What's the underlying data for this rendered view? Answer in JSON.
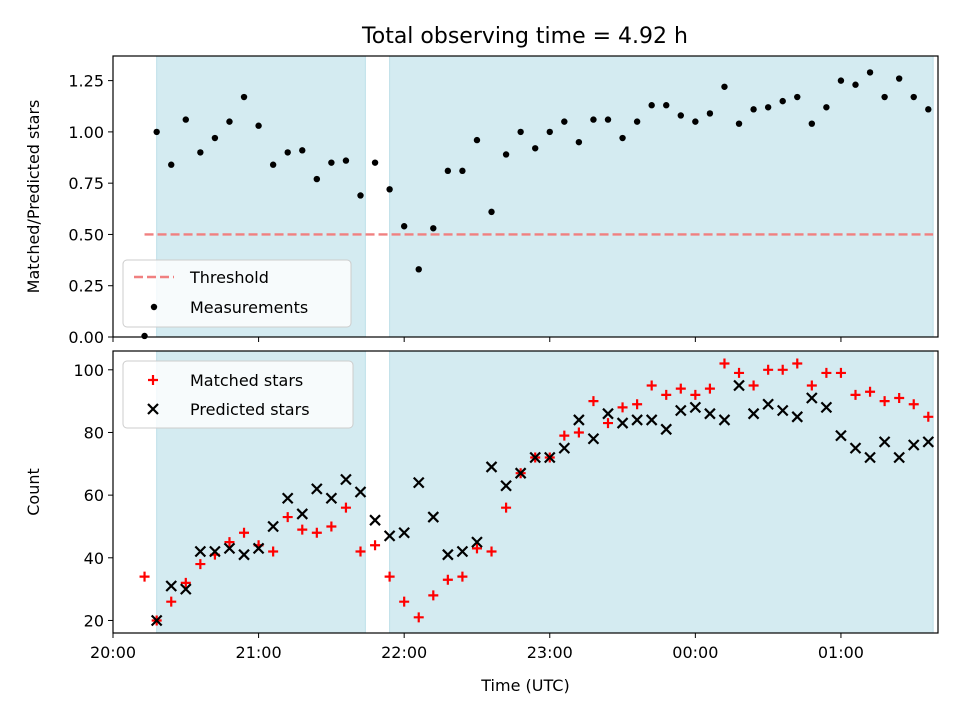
{
  "title": "Total observing time = 4.92 h",
  "colors": {
    "shade": "#d4ebf1",
    "threshold": "#f08080",
    "measurement": "#000000",
    "matched": "#ff0000",
    "predicted": "#000000"
  },
  "chart_data": [
    {
      "type": "scatter",
      "title": "Total observing time = 4.92 h",
      "ylabel": "Matched/Predicted stars",
      "xlabel": "",
      "xlim": [
        "20:00",
        "01:40"
      ],
      "ylim": [
        0,
        1.37
      ],
      "yticks": [
        "0.00",
        "0.25",
        "0.50",
        "0.75",
        "1.00",
        "1.25"
      ],
      "ytick_values": [
        0,
        0.25,
        0.5,
        0.75,
        1.0,
        1.25
      ],
      "shaded_intervals": [
        [
          "20:18",
          "21:44"
        ],
        [
          "21:54",
          "01:38"
        ]
      ],
      "threshold": 0.5,
      "threshold_range": [
        "20:13",
        "01:38"
      ],
      "legend": {
        "placement": "lower-left",
        "entries": [
          "Threshold",
          "Measurements"
        ]
      },
      "series": [
        {
          "name": "Measurements",
          "x": [
            "20:13",
            "20:18",
            "20:24",
            "20:30",
            "20:36",
            "20:42",
            "20:48",
            "20:54",
            "21:00",
            "21:06",
            "21:12",
            "21:18",
            "21:24",
            "21:30",
            "21:36",
            "21:42",
            "21:48",
            "21:54",
            "22:00",
            "22:06",
            "22:12",
            "22:18",
            "22:24",
            "22:30",
            "22:36",
            "22:42",
            "22:48",
            "22:54",
            "23:00",
            "23:06",
            "23:12",
            "23:18",
            "23:24",
            "23:30",
            "23:36",
            "23:42",
            "23:48",
            "23:54",
            "00:00",
            "00:06",
            "00:12",
            "00:18",
            "00:24",
            "00:30",
            "00:36",
            "00:42",
            "00:48",
            "00:54",
            "01:00",
            "01:06",
            "01:12",
            "01:18",
            "01:24",
            "01:30",
            "01:36"
          ],
          "values": [
            0.005,
            1.0,
            0.84,
            1.06,
            0.9,
            0.97,
            1.05,
            1.17,
            1.03,
            0.84,
            0.9,
            0.91,
            0.77,
            0.85,
            0.86,
            0.69,
            0.85,
            0.72,
            0.54,
            0.33,
            0.53,
            0.81,
            0.81,
            0.96,
            0.61,
            0.89,
            1.0,
            0.92,
            1.0,
            1.05,
            0.95,
            1.06,
            1.06,
            0.97,
            1.05,
            1.13,
            1.13,
            1.08,
            1.05,
            1.09,
            1.22,
            1.04,
            1.11,
            1.12,
            1.15,
            1.17,
            1.04,
            1.12,
            1.25,
            1.23,
            1.29,
            1.17,
            1.26,
            1.17,
            1.11
          ]
        }
      ]
    },
    {
      "type": "scatter",
      "xlabel": "Time (UTC)",
      "ylabel": "Count",
      "xlim": [
        "20:00",
        "01:40"
      ],
      "ylim": [
        16,
        106
      ],
      "xticks": [
        "20:00",
        "21:00",
        "22:00",
        "23:00",
        "00:00",
        "01:00"
      ],
      "yticks": [
        "20",
        "40",
        "60",
        "80",
        "100"
      ],
      "ytick_values": [
        20,
        40,
        60,
        80,
        100
      ],
      "shaded_intervals": [
        [
          "20:18",
          "21:44"
        ],
        [
          "21:54",
          "01:38"
        ]
      ],
      "legend": {
        "placement": "top-left",
        "entries": [
          "Matched stars",
          "Predicted stars"
        ]
      },
      "series": [
        {
          "name": "Matched stars",
          "x": [
            "20:13",
            "20:18",
            "20:24",
            "20:30",
            "20:36",
            "20:42",
            "20:48",
            "20:54",
            "21:00",
            "21:06",
            "21:12",
            "21:18",
            "21:24",
            "21:30",
            "21:36",
            "21:42",
            "21:48",
            "21:54",
            "22:00",
            "22:06",
            "22:12",
            "22:18",
            "22:24",
            "22:30",
            "22:36",
            "22:42",
            "22:48",
            "22:54",
            "23:00",
            "23:06",
            "23:12",
            "23:18",
            "23:24",
            "23:30",
            "23:36",
            "23:42",
            "23:48",
            "23:54",
            "00:00",
            "00:06",
            "00:12",
            "00:18",
            "00:24",
            "00:30",
            "00:36",
            "00:42",
            "00:48",
            "00:54",
            "01:00",
            "01:06",
            "01:12",
            "01:18",
            "01:24",
            "01:30",
            "01:36"
          ],
          "values": [
            34,
            20,
            26,
            32,
            38,
            41,
            45,
            48,
            44,
            42,
            53,
            49,
            48,
            50,
            56,
            42,
            44,
            34,
            26,
            21,
            28,
            33,
            34,
            43,
            42,
            56,
            67,
            72,
            72,
            79,
            80,
            90,
            83,
            88,
            89,
            95,
            92,
            94,
            92,
            94,
            102,
            99,
            95,
            100,
            100,
            102,
            95,
            99,
            99,
            92,
            93,
            90,
            91,
            89,
            85
          ]
        },
        {
          "name": "Predicted stars",
          "x": [
            "20:18",
            "20:24",
            "20:30",
            "20:36",
            "20:42",
            "20:48",
            "20:54",
            "21:00",
            "21:06",
            "21:12",
            "21:18",
            "21:24",
            "21:30",
            "21:36",
            "21:42",
            "21:48",
            "21:54",
            "22:00",
            "22:06",
            "22:12",
            "22:18",
            "22:24",
            "22:30",
            "22:36",
            "22:42",
            "22:48",
            "22:54",
            "23:00",
            "23:06",
            "23:12",
            "23:18",
            "23:24",
            "23:30",
            "23:36",
            "23:42",
            "23:48",
            "23:54",
            "00:00",
            "00:06",
            "00:12",
            "00:18",
            "00:24",
            "00:30",
            "00:36",
            "00:42",
            "00:48",
            "00:54",
            "01:00",
            "01:06",
            "01:12",
            "01:18",
            "01:24",
            "01:30",
            "01:36"
          ],
          "values": [
            20,
            31,
            30,
            42,
            42,
            43,
            41,
            43,
            50,
            59,
            54,
            62,
            59,
            65,
            61,
            52,
            47,
            48,
            64,
            53,
            41,
            42,
            45,
            69,
            63,
            67,
            72,
            72,
            75,
            84,
            78,
            86,
            83,
            84,
            84,
            81,
            87,
            88,
            86,
            84,
            95,
            86,
            89,
            87,
            85,
            91,
            88,
            79,
            75,
            72,
            77,
            72,
            76,
            77
          ]
        }
      ]
    }
  ]
}
